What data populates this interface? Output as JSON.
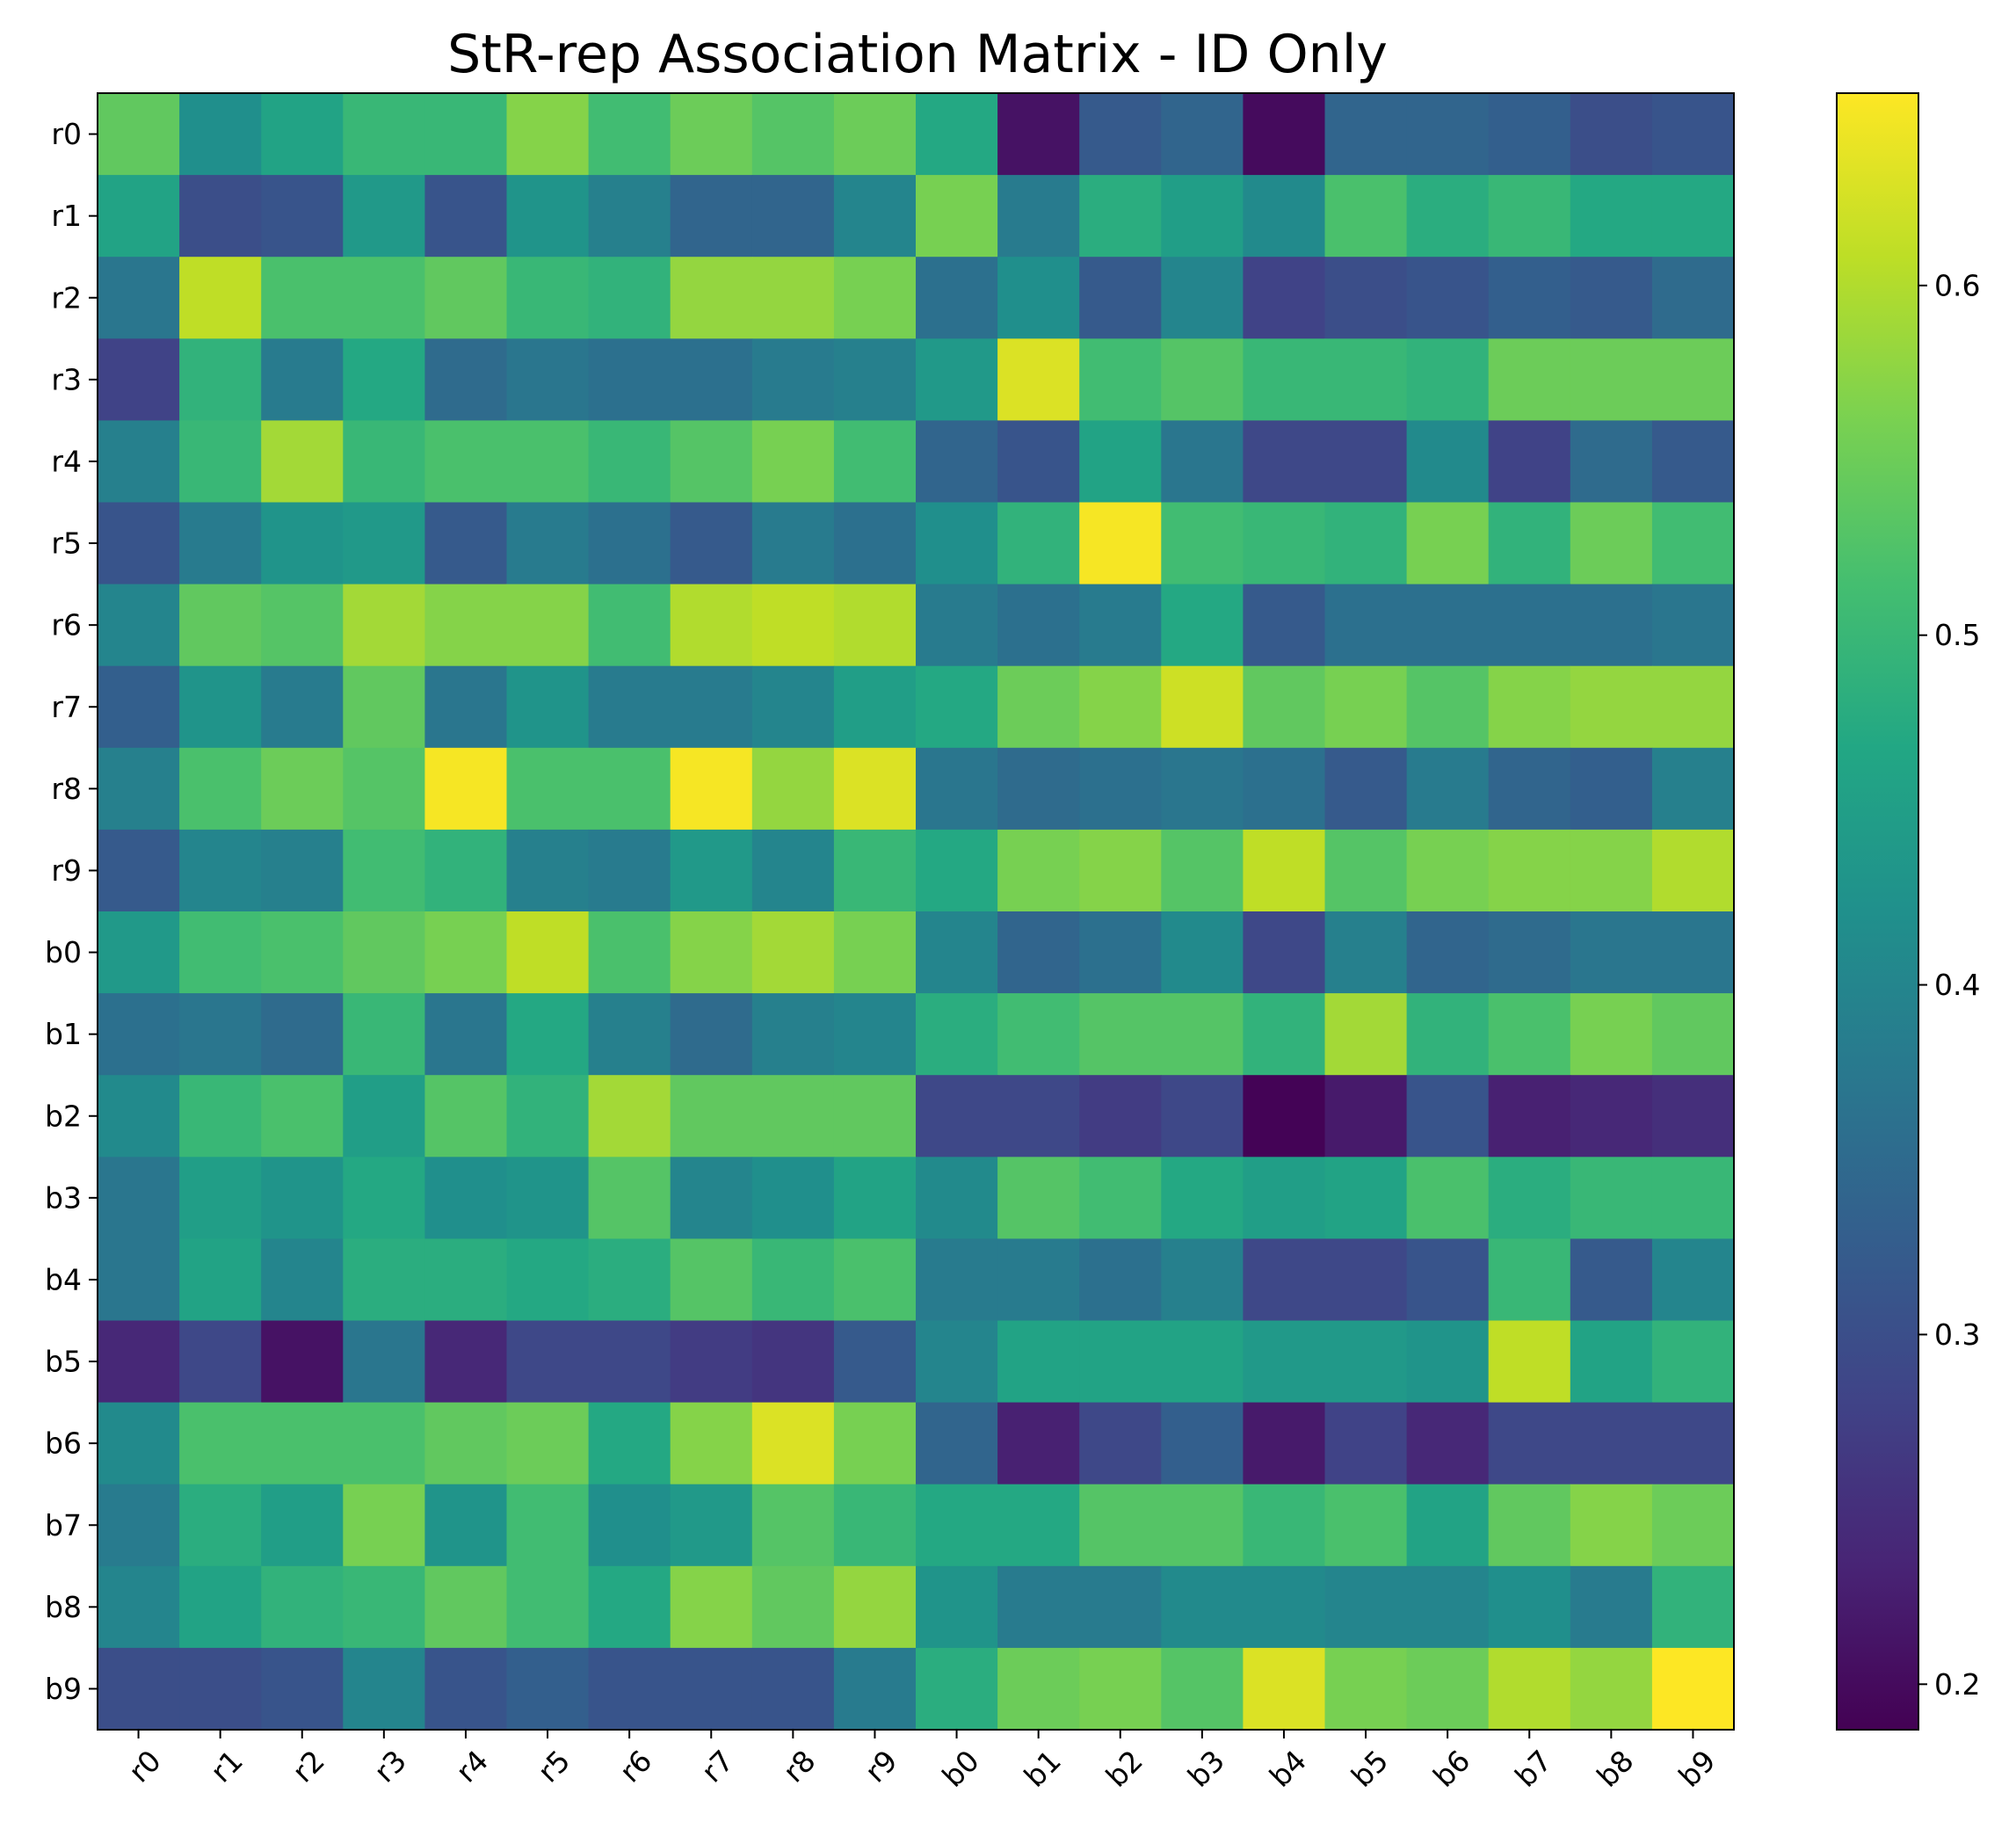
{
  "chart_data": {
    "type": "heatmap",
    "title": "StR-rep Association Matrix - ID Only",
    "xlabel": "",
    "ylabel": "",
    "x_categories": [
      "r0",
      "r1",
      "r2",
      "r3",
      "r4",
      "r5",
      "r6",
      "r7",
      "r8",
      "r9",
      "b0",
      "b1",
      "b2",
      "b3",
      "b4",
      "b5",
      "b6",
      "b7",
      "b8",
      "b9"
    ],
    "y_categories": [
      "r0",
      "r1",
      "r2",
      "r3",
      "r4",
      "r5",
      "r6",
      "r7",
      "r8",
      "r9",
      "b0",
      "b1",
      "b2",
      "b3",
      "b4",
      "b5",
      "b6",
      "b7",
      "b8",
      "b9"
    ],
    "colormap": "viridis",
    "colorbar": {
      "vmin": 0.187,
      "vmax": 0.655,
      "ticks": [
        0.2,
        0.3,
        0.4,
        0.5,
        0.6
      ],
      "tick_labels": [
        "0.2",
        "0.3",
        "0.4",
        "0.5",
        "0.6"
      ]
    },
    "values": [
      [
        0.54,
        0.42,
        0.46,
        0.5,
        0.5,
        0.57,
        0.51,
        0.55,
        0.53,
        0.55,
        0.47,
        0.21,
        0.32,
        0.34,
        0.2,
        0.34,
        0.34,
        0.33,
        0.3,
        0.31
      ],
      [
        0.46,
        0.3,
        0.31,
        0.44,
        0.31,
        0.43,
        0.39,
        0.34,
        0.34,
        0.4,
        0.56,
        0.38,
        0.48,
        0.45,
        0.41,
        0.52,
        0.48,
        0.5,
        0.47,
        0.47
      ],
      [
        0.37,
        0.61,
        0.52,
        0.52,
        0.54,
        0.5,
        0.49,
        0.58,
        0.58,
        0.56,
        0.36,
        0.42,
        0.32,
        0.4,
        0.28,
        0.3,
        0.31,
        0.33,
        0.32,
        0.35
      ],
      [
        0.28,
        0.49,
        0.38,
        0.47,
        0.35,
        0.37,
        0.36,
        0.36,
        0.38,
        0.39,
        0.44,
        0.63,
        0.51,
        0.53,
        0.5,
        0.5,
        0.49,
        0.55,
        0.55,
        0.55
      ],
      [
        0.39,
        0.5,
        0.59,
        0.5,
        0.52,
        0.52,
        0.5,
        0.53,
        0.56,
        0.51,
        0.34,
        0.31,
        0.46,
        0.37,
        0.29,
        0.29,
        0.41,
        0.28,
        0.35,
        0.32
      ],
      [
        0.31,
        0.38,
        0.43,
        0.44,
        0.32,
        0.38,
        0.36,
        0.32,
        0.38,
        0.36,
        0.42,
        0.49,
        0.65,
        0.51,
        0.5,
        0.49,
        0.56,
        0.49,
        0.55,
        0.51
      ],
      [
        0.4,
        0.54,
        0.53,
        0.59,
        0.57,
        0.57,
        0.51,
        0.6,
        0.61,
        0.6,
        0.38,
        0.36,
        0.38,
        0.47,
        0.32,
        0.36,
        0.36,
        0.36,
        0.36,
        0.37
      ],
      [
        0.33,
        0.43,
        0.38,
        0.54,
        0.37,
        0.43,
        0.38,
        0.38,
        0.4,
        0.45,
        0.47,
        0.55,
        0.57,
        0.62,
        0.54,
        0.56,
        0.53,
        0.57,
        0.58,
        0.58
      ],
      [
        0.39,
        0.52,
        0.55,
        0.53,
        0.65,
        0.52,
        0.52,
        0.65,
        0.58,
        0.63,
        0.37,
        0.35,
        0.36,
        0.37,
        0.36,
        0.32,
        0.38,
        0.34,
        0.33,
        0.39
      ],
      [
        0.32,
        0.4,
        0.39,
        0.51,
        0.49,
        0.39,
        0.38,
        0.44,
        0.4,
        0.5,
        0.47,
        0.56,
        0.57,
        0.53,
        0.61,
        0.53,
        0.56,
        0.57,
        0.57,
        0.6
      ],
      [
        0.44,
        0.51,
        0.52,
        0.54,
        0.56,
        0.61,
        0.52,
        0.57,
        0.59,
        0.56,
        0.4,
        0.34,
        0.36,
        0.41,
        0.29,
        0.39,
        0.34,
        0.35,
        0.37,
        0.37
      ],
      [
        0.36,
        0.37,
        0.35,
        0.5,
        0.37,
        0.47,
        0.39,
        0.35,
        0.39,
        0.4,
        0.48,
        0.51,
        0.53,
        0.53,
        0.49,
        0.59,
        0.49,
        0.52,
        0.56,
        0.54
      ],
      [
        0.41,
        0.5,
        0.52,
        0.45,
        0.53,
        0.49,
        0.59,
        0.54,
        0.54,
        0.54,
        0.29,
        0.29,
        0.27,
        0.29,
        0.19,
        0.22,
        0.31,
        0.23,
        0.24,
        0.25
      ],
      [
        0.37,
        0.45,
        0.43,
        0.47,
        0.42,
        0.43,
        0.53,
        0.4,
        0.42,
        0.46,
        0.41,
        0.53,
        0.51,
        0.47,
        0.45,
        0.46,
        0.52,
        0.48,
        0.5,
        0.5
      ],
      [
        0.37,
        0.46,
        0.4,
        0.48,
        0.48,
        0.47,
        0.48,
        0.53,
        0.5,
        0.52,
        0.38,
        0.38,
        0.36,
        0.39,
        0.29,
        0.29,
        0.31,
        0.5,
        0.32,
        0.4
      ],
      [
        0.24,
        0.29,
        0.21,
        0.37,
        0.24,
        0.29,
        0.29,
        0.27,
        0.26,
        0.32,
        0.4,
        0.46,
        0.46,
        0.46,
        0.44,
        0.44,
        0.43,
        0.61,
        0.46,
        0.49
      ],
      [
        0.41,
        0.52,
        0.52,
        0.52,
        0.54,
        0.55,
        0.47,
        0.57,
        0.63,
        0.56,
        0.34,
        0.23,
        0.29,
        0.33,
        0.22,
        0.28,
        0.24,
        0.29,
        0.29,
        0.29
      ],
      [
        0.38,
        0.48,
        0.45,
        0.56,
        0.43,
        0.51,
        0.42,
        0.44,
        0.53,
        0.5,
        0.47,
        0.47,
        0.53,
        0.53,
        0.5,
        0.52,
        0.46,
        0.54,
        0.57,
        0.55
      ],
      [
        0.4,
        0.46,
        0.49,
        0.5,
        0.54,
        0.51,
        0.47,
        0.57,
        0.54,
        0.58,
        0.43,
        0.38,
        0.38,
        0.41,
        0.41,
        0.4,
        0.4,
        0.42,
        0.38,
        0.49
      ],
      [
        0.3,
        0.3,
        0.31,
        0.4,
        0.31,
        0.33,
        0.31,
        0.31,
        0.31,
        0.38,
        0.48,
        0.55,
        0.56,
        0.53,
        0.63,
        0.56,
        0.55,
        0.6,
        0.58,
        0.66
      ]
    ]
  }
}
